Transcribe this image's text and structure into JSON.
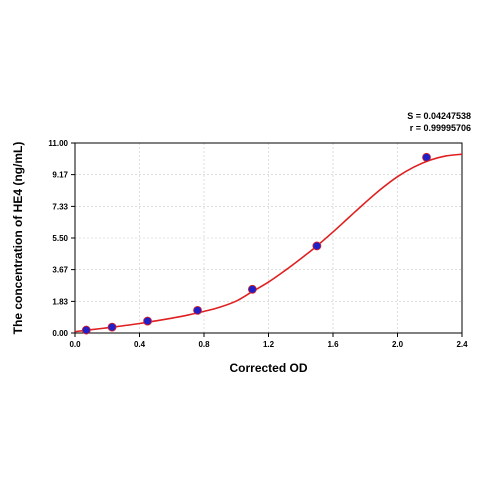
{
  "stats": {
    "s_text": "S = 0.04247538",
    "r_text": "r = 0.99995706"
  },
  "chart_data": {
    "type": "scatter",
    "title": "",
    "xlabel": "Corrected OD",
    "ylabel": "The concentration of HE4 (ng/mL)",
    "xlim": [
      0,
      2.4
    ],
    "ylim": [
      0,
      11.0
    ],
    "x_ticks": [
      "0.0",
      "0.4",
      "0.8",
      "1.2",
      "1.6",
      "2.0",
      "2.4"
    ],
    "x_tick_values": [
      0,
      0.4,
      0.8,
      1.2,
      1.6,
      2.0,
      2.4
    ],
    "y_ticks": [
      "0.00",
      "1.83",
      "3.67",
      "5.50",
      "7.33",
      "9.17",
      "11.00"
    ],
    "y_tick_values": [
      0,
      1.83,
      3.67,
      5.5,
      7.33,
      9.17,
      11.0
    ],
    "grid": true,
    "points": [
      {
        "x": 0.07,
        "y": 0.17
      },
      {
        "x": 0.23,
        "y": 0.34
      },
      {
        "x": 0.45,
        "y": 0.69
      },
      {
        "x": 0.76,
        "y": 1.31
      },
      {
        "x": 1.1,
        "y": 2.53
      },
      {
        "x": 1.5,
        "y": 5.04
      },
      {
        "x": 2.18,
        "y": 10.17
      }
    ],
    "fit_curve": {
      "x": [
        0,
        0.1,
        0.2,
        0.3,
        0.4,
        0.5,
        0.6,
        0.7,
        0.8,
        0.9,
        1.0,
        1.1,
        1.2,
        1.3,
        1.4,
        1.5,
        1.6,
        1.7,
        1.8,
        1.9,
        2.0,
        2.1,
        2.2,
        2.3,
        2.4
      ],
      "y": [
        0.08,
        0.19,
        0.3,
        0.42,
        0.55,
        0.7,
        0.86,
        1.04,
        1.25,
        1.5,
        1.85,
        2.4,
        2.95,
        3.6,
        4.3,
        5.04,
        5.85,
        6.7,
        7.55,
        8.35,
        9.05,
        9.6,
        10.0,
        10.25,
        10.35
      ]
    },
    "point_color": "#2020c8",
    "curve_color": "#e02020"
  }
}
